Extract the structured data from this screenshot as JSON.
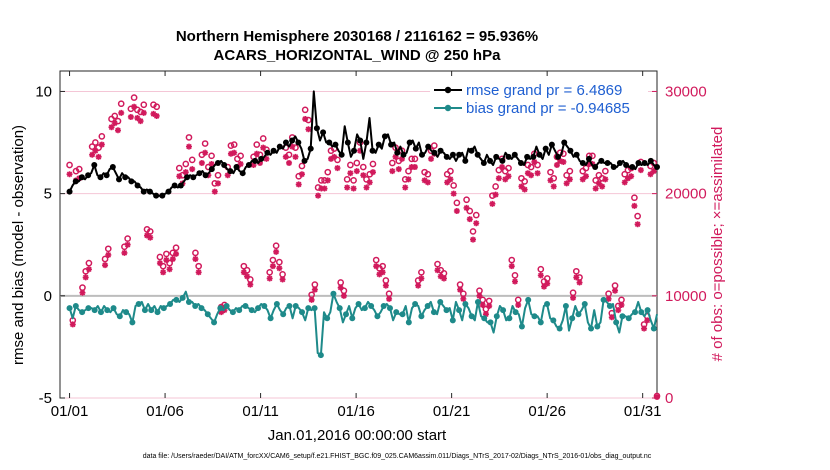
{
  "chart_data": {
    "type": "line",
    "title": "Northern Hemisphere 2030168 / 2116162 = 95.936%",
    "subtitle": "ACARS_HORIZONTAL_WIND @ 250 hPa",
    "xlabel": "Jan.01,2016 00:00:00 start",
    "ylabel": "rmse and bias (model - observation)",
    "y2label": "# of obs: o=possible; ×=assimilated",
    "xlim": [
      0.5,
      31.75
    ],
    "ylim": [
      -5,
      11
    ],
    "y2lim": [
      0,
      32000
    ],
    "x_ticks": [
      1,
      6,
      11,
      16,
      21,
      26,
      31
    ],
    "x_tick_labels": [
      "01/01",
      "01/06",
      "01/11",
      "01/16",
      "01/21",
      "01/26",
      "01/31"
    ],
    "y_ticks": [
      -5,
      0,
      5,
      10
    ],
    "y_tick_labels": [
      "-5",
      "0",
      "5",
      "10"
    ],
    "y2_ticks": [
      0,
      10000,
      20000,
      30000
    ],
    "y2_tick_labels": [
      "0",
      "10000",
      "20000",
      "30000"
    ],
    "legend": [
      "rmse grand pr = 6.4869",
      "bias grand pr = -0.94685"
    ],
    "legend_position": "top-right",
    "footer": "data file: /Users/raeder/DAI/ATM_forcXX/CAM6_setup/f.e21.FHIST_BGC.f09_025.CAM6assim.011/Diags_NTrS_2017-02/Diags_NTrS_2016-01/obs_diag_output.nc",
    "series": [
      {
        "name": "rmse",
        "color": "#000000",
        "values": [
          5.1,
          5.4,
          5.6,
          5.6,
          5.8,
          5.7,
          5.9,
          6,
          6.4,
          5.9,
          5.8,
          6,
          5.9,
          6.2,
          6.3,
          6,
          5.7,
          6,
          5.8,
          5.8,
          5.6,
          5.6,
          5.4,
          5.3,
          5.1,
          5.2,
          5.1,
          5,
          4.9,
          4.9,
          4.9,
          5,
          5.1,
          5.3,
          5.4,
          5.3,
          5.4,
          5.6,
          5.8,
          5.9,
          5.8,
          5.9,
          6,
          6.1,
          5.9,
          6,
          6.2,
          6.4,
          6.5,
          6.6,
          6.4,
          6.2,
          6.1,
          6,
          6.3,
          6.1,
          6,
          6.3,
          6.4,
          6.6,
          6.6,
          6.5,
          6.7,
          6.8,
          7,
          6.9,
          7.1,
          7,
          7.3,
          7.2,
          7.5,
          7.3,
          7.6,
          7.8,
          7.5,
          7.2,
          6.6,
          6.7,
          7.2,
          10,
          8.2,
          7.6,
          8,
          7.5,
          7.5,
          7.3,
          7.4,
          7.1,
          6.9,
          8.3,
          7.5,
          6.8,
          7.1,
          7.9,
          7.6,
          6.7,
          7.5,
          8.7,
          7.1,
          7,
          7.4,
          7.2,
          7.8,
          7.9,
          7.4,
          7.5,
          7,
          7.3,
          6.9,
          7,
          7.5,
          7.6,
          7.2,
          7.5,
          6.9,
          7,
          7.3,
          7.1,
          7,
          6.8,
          7.1,
          7,
          6.8,
          6.7,
          6.9,
          6.6,
          6.9,
          7,
          6.6,
          7.2,
          7.1,
          7.3,
          6.9,
          6.7,
          6.5,
          6.9,
          6.6,
          6.4,
          6.8,
          6.7,
          6.6,
          7,
          6.8,
          6.7,
          6.9,
          6.7,
          6.5,
          6.4,
          6.8,
          6.7,
          6.8,
          7.3,
          6.9,
          6.7,
          7.2,
          6.9,
          7.4,
          7.1,
          6.8,
          6.9,
          7.5,
          7.3,
          7.1,
          6.8,
          6.9,
          6.6,
          6.5,
          6.4,
          6.7,
          6.4,
          6.3,
          6.5,
          6.6,
          6.5,
          6.5,
          6.5,
          6.3,
          6.3,
          6.5,
          6.6,
          6.4,
          6.3,
          6.3,
          6.2,
          6.5,
          6.4,
          6.5,
          6.4,
          6.6,
          6.4,
          6.3
        ]
      },
      {
        "name": "bias",
        "color": "#1e8a8a",
        "values": [
          -0.6,
          -1.1,
          -0.5,
          -0.7,
          -0.8,
          -0.7,
          -0.6,
          -0.6,
          -0.7,
          -0.5,
          -0.8,
          -0.5,
          -0.7,
          -0.8,
          -0.6,
          -0.9,
          -1,
          -0.7,
          -0.8,
          -0.9,
          -1.3,
          -0.5,
          -0.4,
          -0.3,
          -0.7,
          -0.4,
          -0.7,
          -0.5,
          -0.8,
          -0.5,
          -0.6,
          -0.5,
          -0.4,
          -0.2,
          -0.2,
          -0.3,
          -0.1,
          0.2,
          -0.3,
          -0.3,
          -0.5,
          -0.4,
          -0.6,
          -0.7,
          -0.9,
          -1.1,
          -1.3,
          -0.9,
          -0.6,
          -0.7,
          -0.5,
          -0.7,
          -0.8,
          -0.6,
          -0.7,
          -0.5,
          -0.5,
          -0.6,
          -0.7,
          -0.8,
          -0.6,
          -0.4,
          -0.5,
          -0.7,
          -1.1,
          -0.7,
          -0.4,
          -0.7,
          -0.9,
          -0.6,
          -0.5,
          -1.1,
          -0.5,
          -0.6,
          -0.8,
          -1.2,
          -0.6,
          -0.7,
          -0.6,
          -2.8,
          -2.9,
          -0.8,
          -1.1,
          -0.8,
          0.1,
          -0.3,
          -0.6,
          -1.3,
          -0.9,
          -0.5,
          -1.1,
          -0.6,
          -0.4,
          -0.7,
          -0.6,
          -0.3,
          -0.5,
          -0.7,
          -1,
          -0.8,
          -0.5,
          -0.4,
          -0.6,
          -1.2,
          -0.8,
          -0.9,
          -0.9,
          -0.5,
          -1.3,
          -0.6,
          -0.4,
          -0.5,
          -1,
          -0.7,
          -0.5,
          -0.3,
          -0.8,
          -0.9,
          -0.3,
          -0.5,
          -0.7,
          -0.6,
          -1.2,
          -0.3,
          -0.7,
          -1.2,
          -0.4,
          -0.6,
          -1,
          -1.2,
          -0.3,
          -1,
          -1.1,
          -1.3,
          -1.3,
          -1.8,
          -1,
          -0.5,
          -0.7,
          -1.2,
          -1.1,
          -0.5,
          -0.8,
          -0.9,
          -1.5,
          -0.6,
          -0.2,
          -0.9,
          -1,
          -1,
          -1.3,
          -0.5,
          -0.4,
          -1.1,
          -1.2,
          -1.5,
          -1.6,
          -1.2,
          -0.5,
          -1.7,
          -1.1,
          -0.5,
          -0.9,
          -0.7,
          -0.4,
          -1.3,
          -1.6,
          -0.7,
          -1.5,
          -1.3,
          -0.2,
          -0.3,
          -0.5,
          -0.4,
          -1.3,
          -1.8,
          -1,
          -1,
          -1.1,
          -0.9,
          -0.8,
          -0.3,
          -0.8,
          -1,
          -0.7,
          -1.2,
          -1.6,
          -0.9
        ]
      },
      {
        "name": "possible",
        "marker": "o",
        "color": "#d11a5c",
        "values": [
          22800,
          7600,
          22200,
          22400,
          10800,
          12400,
          13200,
          24600,
          25000,
          24500,
          25600,
          13600,
          14600,
          27300,
          27600,
          27100,
          28800,
          14800,
          15600,
          28300,
          29400,
          28200,
          28000,
          28700,
          16500,
          16300,
          28700,
          28500,
          13800,
          12900,
          14100,
          13200,
          14200,
          14700,
          22500,
          21800,
          22900,
          25500,
          23300,
          14200,
          12900,
          23800,
          24900,
          22600,
          23700,
          21000,
          21800,
          8900,
          9100,
          22600,
          24700,
          24800,
          23400,
          23700,
          12900,
          12500,
          11600,
          23600,
          24800,
          23800,
          25400,
          24300,
          12300,
          13500,
          14900,
          13300,
          12100,
          24500,
          23800,
          25500,
          24500,
          21700,
          22700,
          28200,
          27200,
          10100,
          11100,
          20600,
          21300,
          21300,
          22100,
          24200,
          24400,
          23300,
          11300,
          10500,
          21400,
          22800,
          21300,
          23000,
          25000,
          22600,
          21400,
          21900,
          22900,
          13500,
          12700,
          12900,
          11500,
          10200,
          23000,
          24500,
          23200,
          24200,
          21400,
          22200,
          23400,
          23400,
          11500,
          12300,
          22100,
          21900,
          24200,
          24700,
          13100,
          12500,
          12200,
          21900,
          22200,
          20800,
          19100,
          11100,
          10200,
          19400,
          18300,
          16300,
          17900,
          10500,
          9600,
          8700,
          9500,
          19800,
          20700,
          22300,
          23400,
          22200,
          22500,
          13500,
          12000,
          9600,
          21500,
          21200,
          22800,
          22600,
          23900,
          22800,
          12600,
          11400,
          11700,
          22100,
          21500,
          23600,
          24000,
          23900,
          21800,
          22200,
          10300,
          12400,
          11800,
          22200,
          22500,
          23700,
          23700,
          21300,
          21800,
          21500,
          22200,
          10200,
          8300,
          11000,
          9000,
          9600,
          21900,
          22300,
          22500,
          19600,
          17800,
          23100,
          7200,
          8000,
          22700,
          23000,
          200
        ]
      },
      {
        "name": "assimilated",
        "marker": "x",
        "color": "#d11a5c",
        "values": [
          21900,
          7200,
          21300,
          21500,
          10300,
          11800,
          12600,
          23800,
          24200,
          23600,
          24800,
          13000,
          14000,
          26500,
          26900,
          26200,
          27900,
          14200,
          15000,
          27500,
          28500,
          27400,
          27100,
          27900,
          15900,
          15700,
          27800,
          27600,
          13200,
          12300,
          13500,
          12600,
          13600,
          14100,
          21700,
          21000,
          22100,
          24600,
          22400,
          13600,
          12300,
          23000,
          24000,
          21800,
          22900,
          20200,
          21000,
          8400,
          8600,
          21800,
          23900,
          24000,
          22600,
          22900,
          12300,
          11900,
          11100,
          22800,
          23900,
          23000,
          24500,
          23400,
          11700,
          12900,
          14300,
          12700,
          11600,
          23600,
          23000,
          24600,
          23600,
          20900,
          21900,
          27300,
          26300,
          9600,
          10600,
          19800,
          20500,
          20500,
          21300,
          23400,
          23600,
          22500,
          10800,
          10000,
          20600,
          22000,
          20500,
          22200,
          24200,
          21800,
          20600,
          21100,
          22100,
          12900,
          12100,
          12300,
          11000,
          9700,
          22200,
          23600,
          22400,
          23400,
          20600,
          21400,
          22600,
          22600,
          11000,
          11700,
          21300,
          21100,
          23400,
          23900,
          12500,
          11900,
          11700,
          21100,
          21400,
          20000,
          18300,
          10600,
          9700,
          18600,
          17500,
          15500,
          17100,
          10000,
          9100,
          8200,
          9000,
          19000,
          19900,
          21500,
          22600,
          21400,
          21700,
          12900,
          11400,
          9100,
          20700,
          20400,
          22000,
          21800,
          23100,
          22000,
          12000,
          10900,
          11200,
          21300,
          20700,
          22800,
          23200,
          23100,
          21000,
          21400,
          9800,
          11800,
          11300,
          21400,
          21700,
          22900,
          22900,
          20500,
          21000,
          20700,
          21400,
          9700,
          7900,
          10500,
          8600,
          9100,
          21100,
          21500,
          21700,
          18800,
          17000,
          22300,
          6800,
          7600,
          21900,
          22200,
          100
        ]
      }
    ]
  }
}
